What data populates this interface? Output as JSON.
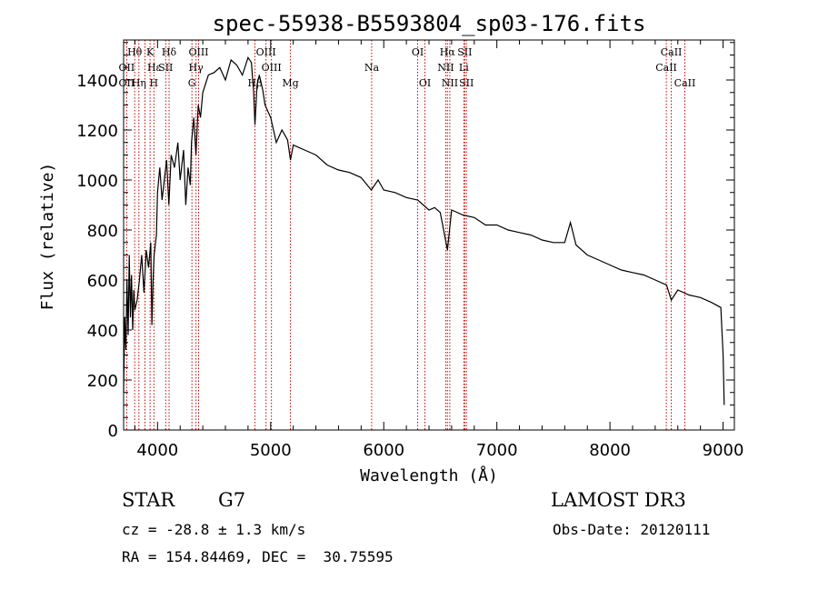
{
  "chart_data": {
    "type": "line",
    "title": "spec-55938-B5593804_sp03-176.fits",
    "xlabel": "Wavelength (Å)",
    "ylabel": "Flux (relative)",
    "xlim": [
      3700,
      9100
    ],
    "ylim": [
      0,
      1560
    ],
    "xticks": [
      4000,
      5000,
      6000,
      7000,
      8000,
      9000
    ],
    "yticks": [
      0,
      200,
      400,
      600,
      800,
      1000,
      1200,
      1400
    ],
    "grid": false,
    "series": [
      {
        "name": "spectrum",
        "x": [
          3700,
          3710,
          3720,
          3730,
          3740,
          3750,
          3760,
          3770,
          3780,
          3790,
          3800,
          3820,
          3840,
          3860,
          3880,
          3900,
          3920,
          3940,
          3950,
          3960,
          3970,
          3990,
          4000,
          4020,
          4040,
          4060,
          4080,
          4100,
          4120,
          4150,
          4180,
          4200,
          4230,
          4250,
          4270,
          4290,
          4300,
          4320,
          4340,
          4360,
          4380,
          4400,
          4450,
          4500,
          4550,
          4600,
          4650,
          4700,
          4750,
          4800,
          4830,
          4850,
          4861,
          4880,
          4900,
          4930,
          4950,
          5000,
          5050,
          5100,
          5150,
          5175,
          5200,
          5250,
          5300,
          5400,
          5500,
          5600,
          5700,
          5800,
          5890,
          5950,
          6000,
          6100,
          6200,
          6300,
          6400,
          6450,
          6500,
          6563,
          6600,
          6700,
          6800,
          6900,
          7000,
          7100,
          7200,
          7300,
          7400,
          7500,
          7600,
          7650,
          7700,
          7800,
          7900,
          8000,
          8100,
          8200,
          8300,
          8400,
          8500,
          8542,
          8600,
          8700,
          8800,
          8900,
          8980,
          9000,
          9010
        ],
        "y": [
          150,
          450,
          320,
          600,
          380,
          700,
          450,
          620,
          400,
          560,
          480,
          520,
          600,
          700,
          550,
          720,
          650,
          750,
          420,
          600,
          700,
          780,
          950,
          1050,
          920,
          1000,
          1080,
          900,
          1100,
          1050,
          1150,
          1000,
          1120,
          900,
          1050,
          980,
          1150,
          1250,
          1100,
          1300,
          1250,
          1350,
          1420,
          1430,
          1450,
          1400,
          1480,
          1460,
          1420,
          1490,
          1470,
          1350,
          1220,
          1380,
          1420,
          1360,
          1300,
          1250,
          1150,
          1200,
          1160,
          1080,
          1140,
          1130,
          1120,
          1100,
          1060,
          1040,
          1030,
          1010,
          960,
          1000,
          960,
          950,
          930,
          920,
          880,
          890,
          870,
          720,
          880,
          860,
          850,
          820,
          820,
          800,
          790,
          780,
          760,
          750,
          750,
          830,
          740,
          700,
          680,
          660,
          640,
          630,
          620,
          600,
          580,
          520,
          560,
          540,
          530,
          510,
          490,
          300,
          100
        ]
      }
    ],
    "line_labels": [
      {
        "text": "Hθ",
        "wavelength": 3798,
        "row": 1
      },
      {
        "text": "OII",
        "wavelength": 3727,
        "row": 2
      },
      {
        "text": "OII",
        "wavelength": 3727,
        "row": 3
      },
      {
        "text": "K",
        "wavelength": 3934,
        "row": 1
      },
      {
        "text": "Hε",
        "wavelength": 3970,
        "row": 2
      },
      {
        "text": "Hη",
        "wavelength": 3835,
        "row": 3
      },
      {
        "text": "Hδ",
        "wavelength": 4102,
        "row": 1
      },
      {
        "text": "SII",
        "wavelength": 4072,
        "row": 2
      },
      {
        "text": "H",
        "wavelength": 3968,
        "row": 3
      },
      {
        "text": "OIII",
        "wavelength": 4363,
        "row": 1
      },
      {
        "text": "Hγ",
        "wavelength": 4340,
        "row": 2
      },
      {
        "text": "G",
        "wavelength": 4304,
        "row": 3
      },
      {
        "text": "OIII",
        "wavelength": 4959,
        "row": 1
      },
      {
        "text": "OIII",
        "wavelength": 5007,
        "row": 2
      },
      {
        "text": "Hβ",
        "wavelength": 4861,
        "row": 3
      },
      {
        "text": "Mg",
        "wavelength": 5175,
        "row": 3
      },
      {
        "text": "Na",
        "wavelength": 5893,
        "row": 2
      },
      {
        "text": "OI",
        "wavelength": 6300,
        "row": 1
      },
      {
        "text": "OI",
        "wavelength": 6364,
        "row": 3
      },
      {
        "text": "Hα",
        "wavelength": 6563,
        "row": 1
      },
      {
        "text": "SII",
        "wavelength": 6716,
        "row": 1
      },
      {
        "text": "NII",
        "wavelength": 6548,
        "row": 2
      },
      {
        "text": "Li",
        "wavelength": 6708,
        "row": 2
      },
      {
        "text": "NII",
        "wavelength": 6584,
        "row": 3
      },
      {
        "text": "SII",
        "wavelength": 6731,
        "row": 3
      },
      {
        "text": "CaII",
        "wavelength": 8542,
        "row": 1
      },
      {
        "text": "CaII",
        "wavelength": 8498,
        "row": 2
      },
      {
        "text": "CaII",
        "wavelength": 8662,
        "row": 3
      }
    ],
    "line_markers": [
      3727,
      3798,
      3835,
      3889,
      3934,
      3968,
      4072,
      4102,
      4304,
      4340,
      4363,
      4861,
      4959,
      5007,
      5175,
      5893,
      6300,
      6364,
      6548,
      6563,
      6584,
      6708,
      6716,
      6731,
      8498,
      8542,
      8662
    ],
    "colors": {
      "line": "#000000",
      "marker": "#cc0000",
      "axis": "#000000"
    }
  },
  "info": {
    "class": "STAR",
    "subclass": "G7",
    "survey": "LAMOST DR3",
    "redshift": "cz = -28.8 ± 1.3 km/s",
    "obs_date": "Obs-Date: 20120111",
    "coords": "RA = 154.84469, DEC =  30.75595"
  }
}
